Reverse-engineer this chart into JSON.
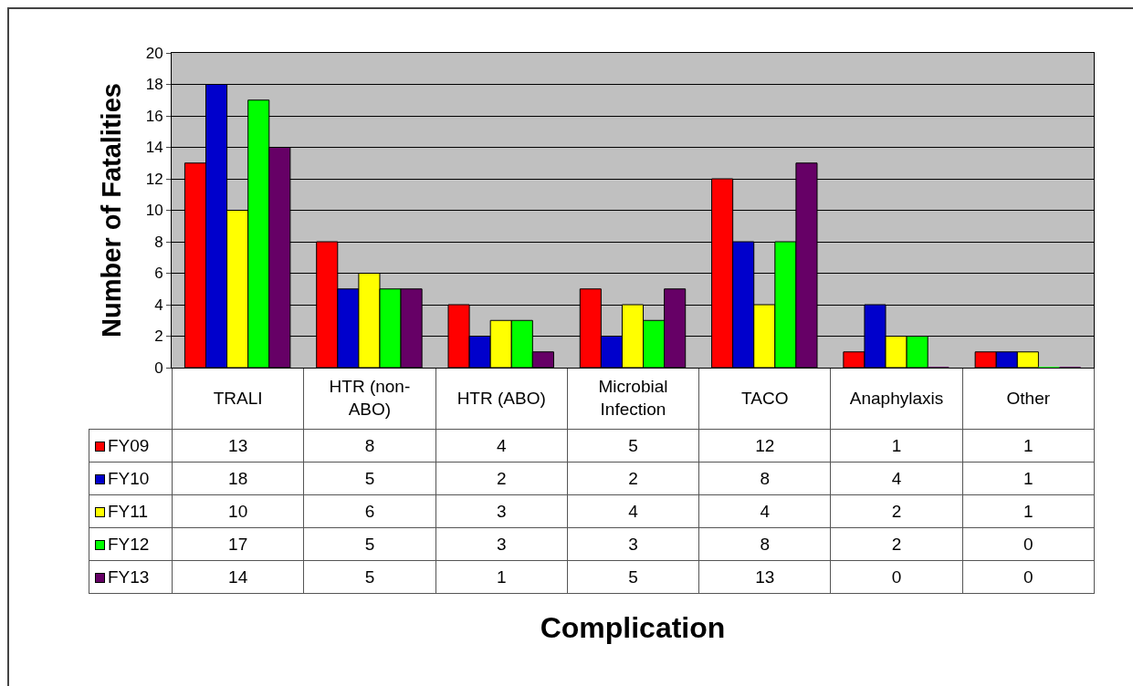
{
  "chart_data": {
    "type": "bar",
    "annotations": [
      "Complication"
    ],
    "ylabel": "Number of Fatalities",
    "categories": [
      "TRALI",
      "HTR (non-ABO)",
      "HTR (ABO)",
      "Microbial Infection",
      "TACO",
      "Anaphylaxis",
      "Other"
    ],
    "series": [
      {
        "name": "FY09",
        "color": "#ff0000",
        "values": [
          13,
          8,
          4,
          5,
          12,
          1,
          1
        ]
      },
      {
        "name": "FY10",
        "color": "#0000cc",
        "values": [
          18,
          5,
          2,
          2,
          8,
          4,
          1
        ]
      },
      {
        "name": "FY11",
        "color": "#ffff00",
        "values": [
          10,
          6,
          3,
          4,
          4,
          2,
          1
        ]
      },
      {
        "name": "FY12",
        "color": "#00ff00",
        "values": [
          17,
          5,
          3,
          3,
          8,
          2,
          0
        ]
      },
      {
        "name": "FY13",
        "color": "#660066",
        "values": [
          14,
          5,
          1,
          5,
          13,
          0,
          0
        ]
      }
    ],
    "ylim": [
      0,
      20
    ],
    "yticks": [
      0,
      2,
      4,
      6,
      8,
      10,
      12,
      14,
      16,
      18,
      20
    ],
    "grid": "y",
    "legend": "bottom left",
    "data_labels": true
  }
}
